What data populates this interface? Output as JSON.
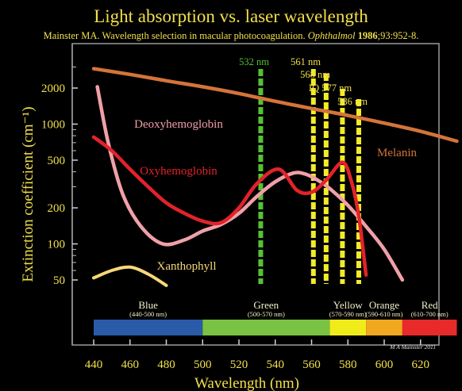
{
  "colors": {
    "background": "#000000",
    "text": "#f2e04a",
    "melanin": "#d4743a",
    "oxyhemoglobin": "#e3222a",
    "deoxyhemoglobin": "#f0a0a8",
    "xanthophyll": "#f6d878",
    "laser_green": "#55c232",
    "laser_yellow": "#f2ec2a"
  },
  "header": {
    "title": "Light absorption vs. laser wavelength",
    "citation_prefix": "Mainster MA. Wavelength selection in macular photocoagulation. ",
    "citation_journal": "Ophthalmol",
    "citation_year": "1986",
    "citation_suffix": ";93:952-8."
  },
  "credit": "M A Mainster 2011",
  "chart_data": {
    "type": "line",
    "title": "Light absorption vs. laser wavelength",
    "xlabel": "Wavelength (nm)",
    "ylabel": "Extinction coefficient (cm⁻¹)",
    "xlim": [
      435,
      642
    ],
    "ylim": [
      30,
      3500
    ],
    "yscale": "log",
    "grid": false,
    "xticks": [
      440,
      460,
      480,
      500,
      520,
      540,
      560,
      580,
      600,
      620
    ],
    "yticks": [
      50,
      100,
      200,
      500,
      1000,
      2000
    ],
    "series": [
      {
        "name": "Melanin",
        "x": [
          440,
          460,
          480,
          500,
          520,
          540,
          560,
          580,
          600,
          620,
          640
        ],
        "y": [
          2900,
          2600,
          2300,
          2050,
          1800,
          1550,
          1350,
          1180,
          1020,
          870,
          720
        ]
      },
      {
        "name": "Oxyhemoglobin",
        "x": [
          440,
          450,
          460,
          470,
          480,
          490,
          500,
          510,
          520,
          530,
          542,
          552,
          560,
          568,
          577,
          582,
          586,
          590
        ],
        "y": [
          780,
          600,
          420,
          300,
          220,
          180,
          155,
          150,
          200,
          320,
          420,
          280,
          270,
          340,
          480,
          330,
          170,
          55
        ]
      },
      {
        "name": "Deoxyhemoglobin",
        "x": [
          442,
          448,
          456,
          466,
          478,
          490,
          500,
          510,
          520,
          530,
          540,
          550,
          556,
          562,
          570,
          580,
          590,
          600,
          610
        ],
        "y": [
          2050,
          700,
          260,
          140,
          100,
          108,
          128,
          145,
          180,
          250,
          330,
          390,
          385,
          350,
          290,
          210,
          140,
          90,
          50
        ]
      },
      {
        "name": "Xanthophyll",
        "x": [
          440,
          450,
          460,
          470,
          480
        ],
        "y": [
          52,
          60,
          64,
          56,
          45
        ]
      }
    ],
    "lasers": [
      {
        "label": "532 nm",
        "nm": 532
      },
      {
        "label": "561 nm",
        "nm": 561
      },
      {
        "label": "568 nm",
        "nm": 568
      },
      {
        "label": "IQ 577 nm",
        "nm": 577
      },
      {
        "label": "586 nm",
        "nm": 586
      }
    ],
    "bands": [
      {
        "name": "Blue",
        "range": "(440-500 nm)",
        "from": 440,
        "to": 500,
        "color": "#2a5aa8"
      },
      {
        "name": "Green",
        "range": "(500-570 nm)",
        "from": 500,
        "to": 570,
        "color": "#7ac243"
      },
      {
        "name": "Yellow",
        "range": "(570-590 nm)",
        "from": 570,
        "to": 590,
        "color": "#f0ec1a"
      },
      {
        "name": "Orange",
        "range": "(590-610 nm)",
        "from": 590,
        "to": 610,
        "color": "#f2a81e"
      },
      {
        "name": "Red",
        "range": "(610-700 nm)",
        "from": 610,
        "to": 640,
        "color": "#e82a2a"
      }
    ]
  }
}
